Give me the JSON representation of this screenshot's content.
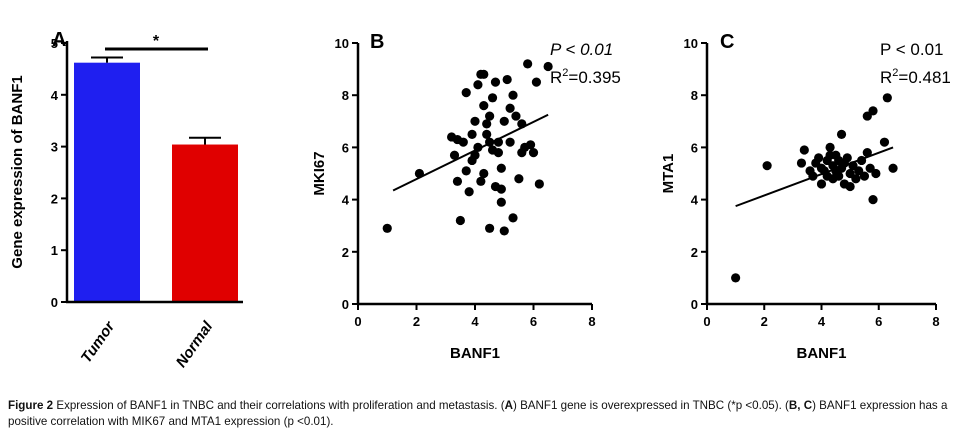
{
  "chart_data": [
    {
      "panel": "A",
      "type": "bar",
      "title": "",
      "ylabel": "Gene expression of BANF1",
      "xlabel": "",
      "categories": [
        "Tumor",
        "Normal"
      ],
      "values": [
        4.62,
        3.04
      ],
      "errors": [
        0.1,
        0.13
      ],
      "colors": [
        "#1f1ff0",
        "#e00000"
      ],
      "ylim": [
        0,
        5
      ],
      "yticks": [
        "0",
        "1",
        "2",
        "3",
        "4",
        "5"
      ],
      "significance": "*"
    },
    {
      "panel": "B",
      "type": "scatter",
      "xlabel": "BANF1",
      "ylabel": "MKI67",
      "xlim": [
        0,
        8
      ],
      "ylim": [
        0,
        10
      ],
      "xticks": [
        "0",
        "2",
        "4",
        "6",
        "8"
      ],
      "yticks": [
        "0",
        "2",
        "4",
        "6",
        "8",
        "10"
      ],
      "stat_p": "P < 0.01",
      "stat_r2_label": "R",
      "stat_r2_sup": "2",
      "stat_r2_value": "=0.395",
      "fit": {
        "x": [
          1.2,
          6.5
        ],
        "y": [
          4.35,
          7.25
        ]
      },
      "points": [
        [
          1.0,
          2.9
        ],
        [
          2.1,
          5.0
        ],
        [
          3.2,
          6.4
        ],
        [
          3.3,
          5.7
        ],
        [
          3.4,
          6.3
        ],
        [
          3.4,
          4.7
        ],
        [
          3.5,
          3.2
        ],
        [
          3.6,
          6.2
        ],
        [
          3.7,
          8.1
        ],
        [
          3.7,
          5.1
        ],
        [
          3.8,
          4.3
        ],
        [
          3.9,
          6.5
        ],
        [
          3.9,
          5.5
        ],
        [
          4.0,
          7.0
        ],
        [
          4.1,
          8.4
        ],
        [
          4.1,
          6.0
        ],
        [
          4.2,
          4.7
        ],
        [
          4.2,
          8.8
        ],
        [
          4.3,
          8.8
        ],
        [
          4.3,
          7.6
        ],
        [
          4.4,
          6.9
        ],
        [
          4.4,
          6.5
        ],
        [
          4.5,
          7.2
        ],
        [
          4.5,
          6.2
        ],
        [
          4.5,
          2.9
        ],
        [
          4.6,
          7.9
        ],
        [
          4.6,
          5.9
        ],
        [
          4.7,
          4.5
        ],
        [
          4.7,
          8.5
        ],
        [
          4.8,
          6.2
        ],
        [
          4.8,
          5.8
        ],
        [
          4.9,
          5.2
        ],
        [
          4.9,
          4.4
        ],
        [
          4.9,
          3.9
        ],
        [
          5.0,
          7.0
        ],
        [
          5.0,
          2.8
        ],
        [
          5.1,
          8.6
        ],
        [
          5.2,
          6.2
        ],
        [
          5.3,
          3.3
        ],
        [
          5.3,
          8.0
        ],
        [
          5.4,
          7.2
        ],
        [
          5.5,
          4.8
        ],
        [
          5.6,
          6.9
        ],
        [
          5.6,
          5.8
        ],
        [
          5.7,
          6.0
        ],
        [
          5.8,
          9.2
        ],
        [
          5.9,
          6.1
        ],
        [
          6.0,
          5.8
        ],
        [
          6.1,
          8.5
        ],
        [
          6.2,
          4.6
        ],
        [
          6.5,
          9.1
        ],
        [
          4.0,
          5.7
        ],
        [
          4.3,
          5.0
        ],
        [
          5.2,
          7.5
        ]
      ]
    },
    {
      "panel": "C",
      "type": "scatter",
      "xlabel": "BANF1",
      "ylabel": "MTA1",
      "xlim": [
        0,
        8
      ],
      "ylim": [
        0,
        10
      ],
      "xticks": [
        "0",
        "2",
        "4",
        "6",
        "8"
      ],
      "yticks": [
        "0",
        "2",
        "4",
        "6",
        "8",
        "10"
      ],
      "stat_p": "P < 0.01",
      "stat_r2_label": "R",
      "stat_r2_sup": "2",
      "stat_r2_value": "=0.481",
      "fit": {
        "x": [
          1.0,
          6.5
        ],
        "y": [
          3.75,
          6.0
        ]
      },
      "points": [
        [
          1.0,
          1.0
        ],
        [
          2.1,
          5.3
        ],
        [
          3.3,
          5.4
        ],
        [
          3.4,
          5.9
        ],
        [
          3.6,
          5.1
        ],
        [
          3.7,
          4.9
        ],
        [
          3.8,
          5.4
        ],
        [
          3.9,
          5.6
        ],
        [
          4.0,
          4.6
        ],
        [
          4.0,
          5.2
        ],
        [
          4.1,
          5.1
        ],
        [
          4.2,
          5.5
        ],
        [
          4.2,
          4.9
        ],
        [
          4.3,
          6.0
        ],
        [
          4.3,
          5.7
        ],
        [
          4.4,
          5.3
        ],
        [
          4.4,
          4.8
        ],
        [
          4.5,
          5.1
        ],
        [
          4.5,
          5.7
        ],
        [
          4.6,
          4.9
        ],
        [
          4.6,
          5.5
        ],
        [
          4.7,
          5.2
        ],
        [
          4.7,
          6.5
        ],
        [
          4.8,
          4.6
        ],
        [
          4.8,
          5.4
        ],
        [
          4.9,
          5.6
        ],
        [
          5.0,
          5.0
        ],
        [
          5.0,
          4.5
        ],
        [
          5.1,
          5.3
        ],
        [
          5.2,
          4.8
        ],
        [
          5.3,
          5.1
        ],
        [
          5.4,
          5.5
        ],
        [
          5.5,
          4.9
        ],
        [
          5.6,
          7.2
        ],
        [
          5.7,
          5.2
        ],
        [
          5.8,
          7.4
        ],
        [
          5.8,
          4.0
        ],
        [
          5.9,
          5.0
        ],
        [
          6.2,
          6.2
        ],
        [
          6.3,
          7.9
        ],
        [
          6.5,
          5.2
        ],
        [
          5.6,
          5.8
        ]
      ]
    }
  ],
  "panel_labels": [
    "A",
    "B",
    "C"
  ],
  "caption": {
    "figure_label": "Figure 2",
    "text_1": " Expression of BANF1 in TNBC and their correlations with proliferation and metastasis. (",
    "A_label": "A",
    "text_2": ") BANF1 gene is overexpressed in TNBC (*p <0.05). (",
    "BC_label": "B, C",
    "text_3": ") BANF1 expression has a positive correlation with MIK67 and MTA1 expression (p <0.01)."
  }
}
